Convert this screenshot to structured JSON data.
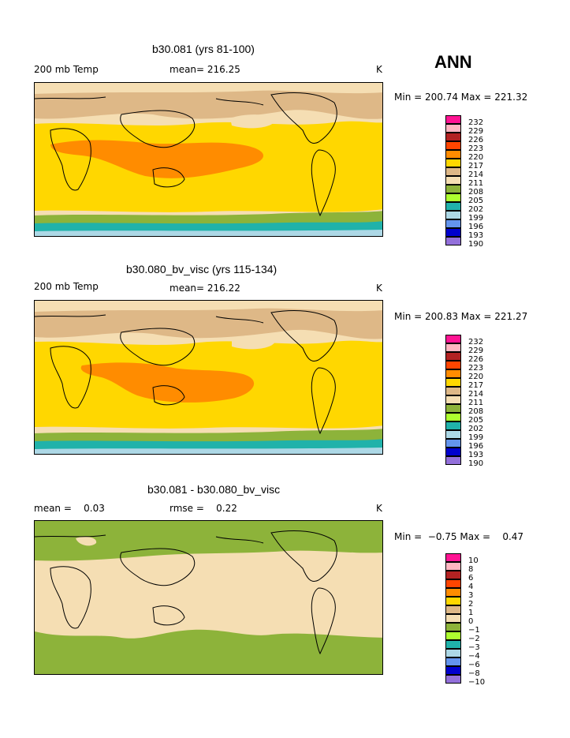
{
  "season": "ANN",
  "panels": [
    {
      "title": "b30.081 (yrs 81-100)",
      "left_label": "200 mb Temp",
      "center_label": "mean= 216.25",
      "units": "K",
      "minmax": "Min = 200.74 Max = 221.32",
      "colorbar_labels": [
        "232",
        "229",
        "226",
        "223",
        "220",
        "217",
        "214",
        "211",
        "208",
        "205",
        "202",
        "199",
        "196",
        "193",
        "190"
      ],
      "colorbar_colors": [
        "#ff1493",
        "#ffb6c1",
        "#b22222",
        "#ff4500",
        "#ff8c00",
        "#ffd700",
        "#deb887",
        "#f5deb3",
        "#8db33a",
        "#adff2f",
        "#20b2aa",
        "#add8e6",
        "#6495ed",
        "#0000cd",
        "#9370db"
      ]
    },
    {
      "title": "b30.080_bv_visc (yrs 115-134)",
      "left_label": "200 mb Temp",
      "center_label": "mean= 216.22",
      "units": "K",
      "minmax": "Min = 200.83 Max = 221.27",
      "colorbar_labels": [
        "232",
        "229",
        "226",
        "223",
        "220",
        "217",
        "214",
        "211",
        "208",
        "205",
        "202",
        "199",
        "196",
        "193",
        "190"
      ],
      "colorbar_colors": [
        "#ff1493",
        "#ffb6c1",
        "#b22222",
        "#ff4500",
        "#ff8c00",
        "#ffd700",
        "#deb887",
        "#f5deb3",
        "#8db33a",
        "#adff2f",
        "#20b2aa",
        "#add8e6",
        "#6495ed",
        "#0000cd",
        "#9370db"
      ]
    },
    {
      "title": "b30.081 - b30.080_bv_visc",
      "left_label": "mean =    0.03",
      "center_label": "rmse =    0.22",
      "units": "K",
      "minmax": "Min =  −0.75 Max =    0.47",
      "colorbar_labels": [
        "10",
        "8",
        "6",
        "4",
        "3",
        "2",
        "1",
        "0",
        "−1",
        "−2",
        "−3",
        "−4",
        "−6",
        "−8",
        "−10"
      ],
      "colorbar_colors": [
        "#ff1493",
        "#ffb6c1",
        "#b22222",
        "#ff4500",
        "#ff8c00",
        "#ffd700",
        "#deb887",
        "#f5deb3",
        "#8db33a",
        "#adff2f",
        "#20b2aa",
        "#add8e6",
        "#6495ed",
        "#0000cd",
        "#9370db"
      ]
    }
  ]
}
